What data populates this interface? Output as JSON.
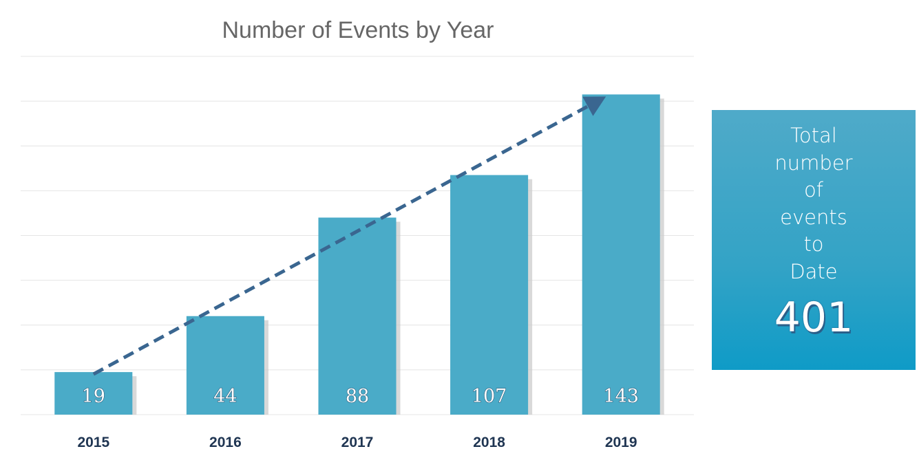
{
  "chart_data": {
    "type": "bar",
    "title": "Number of Events by Year",
    "categories": [
      "2015",
      "2016",
      "2017",
      "2018",
      "2019"
    ],
    "values": [
      19,
      44,
      88,
      107,
      143
    ],
    "xlabel": "",
    "ylabel": "",
    "ylim": [
      0,
      160
    ],
    "grid": true,
    "legend": "none",
    "data_labels": true,
    "trend_arrow": true
  },
  "colors": {
    "bar": "#4aabc8",
    "arrow": "#3a6690",
    "gridline": "#e4e4e4",
    "panel": "#33a3c6"
  },
  "total_panel": {
    "label_lines": [
      "Total",
      "number",
      "of",
      "events",
      "to",
      "Date"
    ],
    "value": "401"
  }
}
